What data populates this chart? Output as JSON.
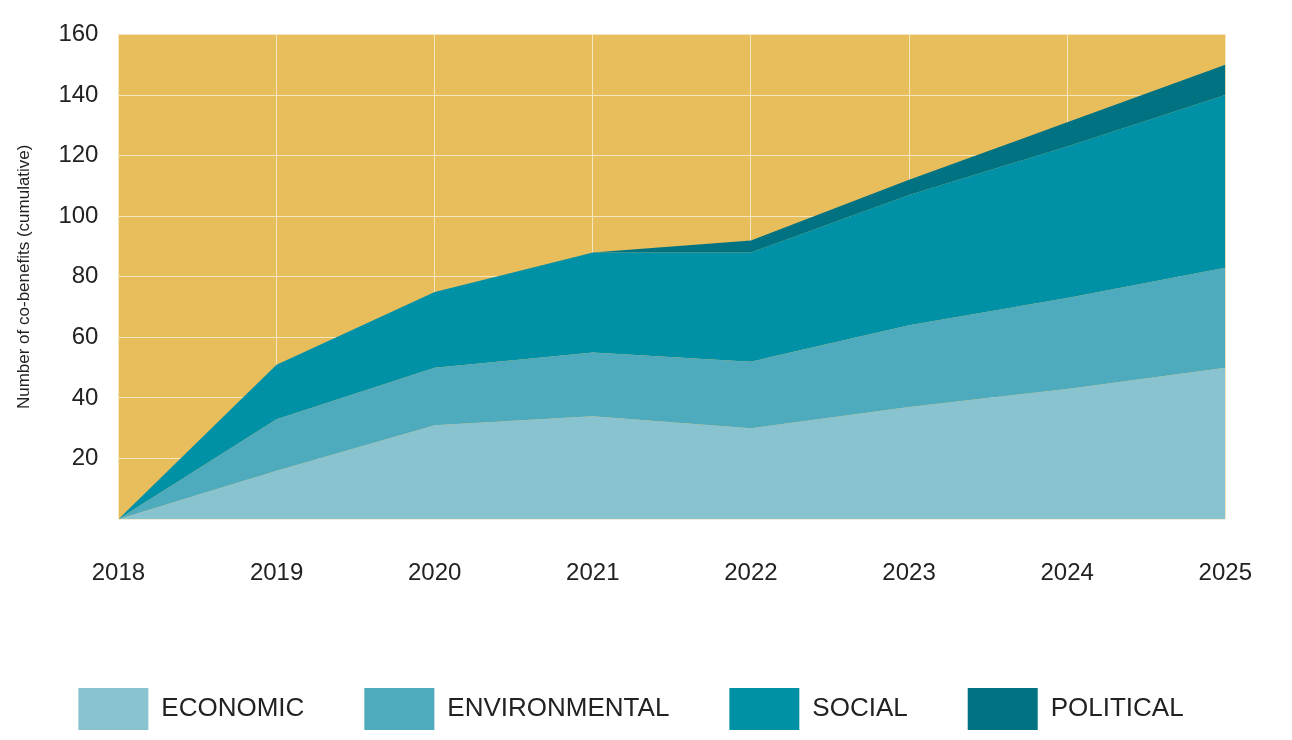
{
  "chart_data": {
    "type": "area",
    "ylabel": "Number of co-benefits (cumulative)",
    "x": [
      2018,
      2019,
      2020,
      2021,
      2022,
      2023,
      2024,
      2025
    ],
    "xlim": [
      2018,
      2025
    ],
    "xticks": [
      2018,
      2019,
      2020,
      2021,
      2022,
      2023,
      2024,
      2025
    ],
    "ylim": [
      0,
      160
    ],
    "yticks": [
      20,
      40,
      60,
      80,
      100,
      120,
      140,
      160
    ],
    "stacked": true,
    "grid": true,
    "legend": "bottom",
    "series": [
      {
        "name": "ECONOMIC",
        "color": "#89c3cf",
        "values": [
          0,
          16,
          31,
          34,
          30,
          37,
          43,
          50
        ]
      },
      {
        "name": "ENVIRONMENTAL",
        "color": "#4eabbd",
        "values": [
          0,
          17,
          19,
          21,
          22,
          27,
          30,
          33
        ]
      },
      {
        "name": "SOCIAL",
        "color": "#0091a7",
        "values": [
          0,
          18,
          25,
          33,
          36,
          43,
          50,
          57
        ]
      },
      {
        "name": "POLITICAL",
        "color": "#007282",
        "values": [
          0,
          0,
          0,
          0,
          4,
          5,
          8,
          10
        ]
      }
    ]
  }
}
